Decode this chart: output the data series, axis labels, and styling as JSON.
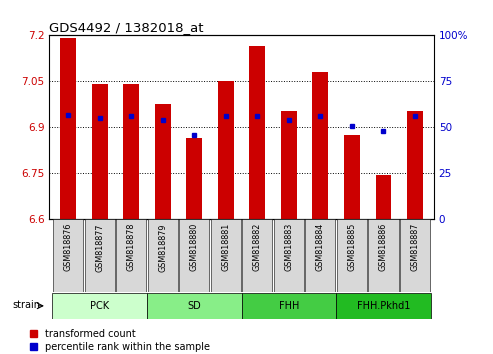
{
  "title": "GDS4492 / 1382018_at",
  "samples": [
    "GSM818876",
    "GSM818877",
    "GSM818878",
    "GSM818879",
    "GSM818880",
    "GSM818881",
    "GSM818882",
    "GSM818883",
    "GSM818884",
    "GSM818885",
    "GSM818886",
    "GSM818887"
  ],
  "bar_values": [
    7.19,
    7.04,
    7.04,
    6.975,
    6.865,
    7.05,
    7.165,
    6.955,
    7.08,
    6.875,
    6.745,
    6.955
  ],
  "percentile_values": [
    57,
    55,
    56,
    54,
    46,
    56,
    56,
    54,
    56,
    51,
    48,
    56
  ],
  "ymin": 6.6,
  "ymax": 7.2,
  "yticks": [
    6.6,
    6.75,
    6.9,
    7.05,
    7.2
  ],
  "ytick_labels": [
    "6.6",
    "6.75",
    "6.9",
    "7.05",
    "7.2"
  ],
  "right_yticks": [
    0,
    25,
    50,
    75,
    100
  ],
  "right_ytick_labels": [
    "0",
    "25",
    "50",
    "75",
    "100%"
  ],
  "bar_color": "#cc0000",
  "marker_color": "#0000cc",
  "groups_info": [
    {
      "label": "PCK",
      "start": 0,
      "end": 3,
      "color": "#ccffcc"
    },
    {
      "label": "SD",
      "start": 3,
      "end": 6,
      "color": "#88ee88"
    },
    {
      "label": "FHH",
      "start": 6,
      "end": 9,
      "color": "#44cc44"
    },
    {
      "label": "FHH.Pkhd1",
      "start": 9,
      "end": 12,
      "color": "#22bb22"
    }
  ],
  "legend_red": "transformed count",
  "legend_blue": "percentile rank within the sample",
  "bar_width": 0.5,
  "tick_bg_color": "#d8d8d8",
  "strain_label": "strain"
}
